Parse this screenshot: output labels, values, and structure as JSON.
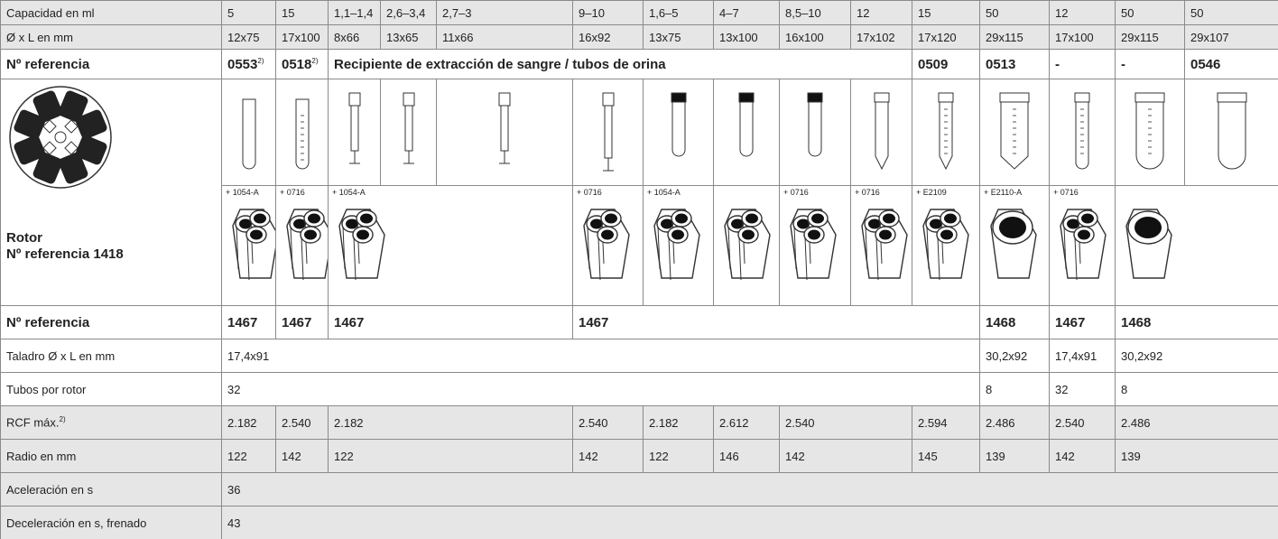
{
  "header_rows": [
    {
      "label": "Capacidad en ml",
      "cells": [
        "5",
        "15",
        "1,1–1,4",
        "2,6–3,4",
        "2,7–3",
        "9–10",
        "1,6–5",
        "4–7",
        "8,5–10",
        "12",
        "15",
        "50",
        "12",
        "50",
        "50"
      ]
    },
    {
      "label": "Ø x L en mm",
      "cells": [
        "12x75",
        "17x100",
        "8x66",
        "13x65",
        "11x66",
        "16x92",
        "13x75",
        "13x100",
        "16x100",
        "17x102",
        "17x120",
        "29x115",
        "17x100",
        "29x115",
        "29x107"
      ]
    },
    {
      "label": "Nº referencia",
      "cells": [
        {
          "text": "0553",
          "sup": "2)"
        },
        {
          "text": "0518",
          "sup": "2)"
        },
        "Recipiente de extracción de sangre / tubos de orina",
        "0509",
        "0513",
        "-",
        "-",
        "0546"
      ]
    }
  ],
  "rotor": {
    "title": "Rotor",
    "reference": "Nº referencia 1418",
    "adapters": [
      "+ 1054-A",
      "+ 0716",
      "+ 1054-A",
      "+ 0716",
      "+ 1054-A",
      "+ 0716",
      "+ 0716",
      "+ E2109",
      "+ E2110-A",
      "+ 0716"
    ]
  },
  "rows": [
    {
      "label": "Nº referencia",
      "cells": [
        "1467",
        "1467",
        "1467",
        "1467",
        "1468",
        "1467",
        "1468"
      ]
    },
    {
      "label": "Taladro Ø x L en mm",
      "cells": [
        "17,4x91",
        "30,2x92",
        "17,4x91",
        "30,2x92"
      ]
    },
    {
      "label": "Tubos por rotor",
      "cells": [
        "32",
        "8",
        "32",
        "8"
      ]
    },
    {
      "label": {
        "text": "RCF máx.",
        "sup": "2)"
      },
      "cells": [
        "2.182",
        "2.540",
        "2.182",
        "2.540",
        "2.182",
        "2.612",
        "2.540",
        "2.594",
        "2.486",
        "2.540",
        "2.486"
      ]
    },
    {
      "label": "Radio en mm",
      "cells": [
        "122",
        "142",
        "122",
        "142",
        "122",
        "146",
        "142",
        "145",
        "139",
        "142",
        "139"
      ]
    },
    {
      "label": "Aceleración en s",
      "cells": [
        "36"
      ]
    },
    {
      "label": "Deceleración en s, frenado",
      "cells": [
        "43"
      ]
    }
  ]
}
